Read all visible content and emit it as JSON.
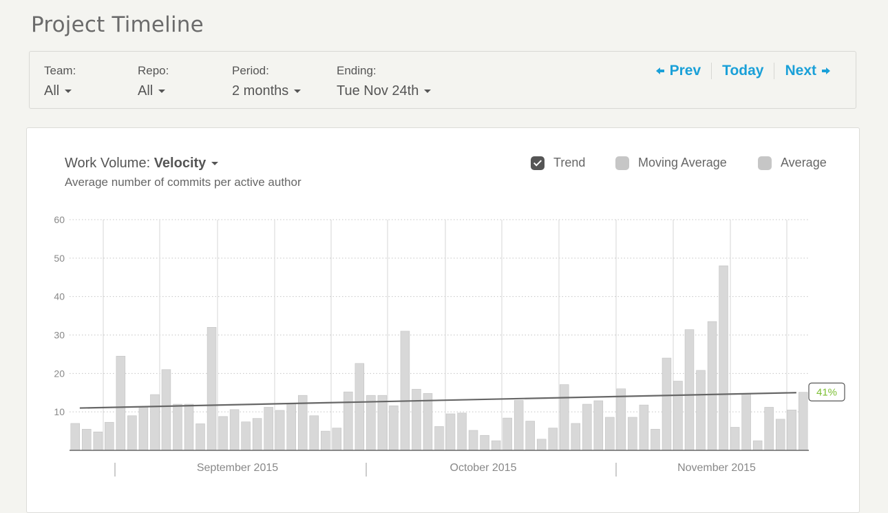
{
  "page_title": "Project Timeline",
  "filters": [
    {
      "label": "Team:",
      "value": "All"
    },
    {
      "label": "Repo:",
      "value": "All"
    },
    {
      "label": "Period:",
      "value": "2 months"
    },
    {
      "label": "Ending:",
      "value": "Tue Nov 24th"
    }
  ],
  "nav": {
    "prev": "Prev",
    "today": "Today",
    "next": "Next"
  },
  "chart_header": {
    "metric_label": "Work Volume:",
    "metric_value": "Velocity",
    "subtitle": "Average number of commits per active author"
  },
  "legend": [
    {
      "label": "Trend",
      "checked": true
    },
    {
      "label": "Moving Average",
      "checked": false
    },
    {
      "label": "Average",
      "checked": false
    }
  ],
  "colors": {
    "accent": "#1aa0d8",
    "bar": "#d8d8d8",
    "trend": "#666666",
    "trend_badge": "#7cbf33"
  },
  "chart_data": {
    "type": "bar",
    "ylim": [
      0,
      60
    ],
    "yticks": [
      10,
      20,
      30,
      40,
      50,
      60
    ],
    "grid": true,
    "x_labels": [
      "September 2015",
      "October 2015",
      "November 2015"
    ],
    "values": [
      7,
      5.5,
      4.8,
      7.3,
      24.5,
      9,
      11.3,
      14.5,
      21,
      12,
      12,
      6.9,
      32,
      8.8,
      10.6,
      7.4,
      8.3,
      11.2,
      10.4,
      12.3,
      14.3,
      9,
      5,
      5.8,
      15.2,
      22.6,
      14.3,
      14.3,
      11.6,
      31,
      15.9,
      14.8,
      6.2,
      9.5,
      9.7,
      5.2,
      3.9,
      2.5,
      8.4,
      13,
      7.6,
      2.9,
      5.8,
      17.1,
      7,
      12,
      12.9,
      8.6,
      16,
      8.6,
      11.8,
      5.5,
      24,
      18,
      31.4,
      20.8,
      33.5,
      48,
      6,
      14.8,
      2.5,
      11.2,
      8.1,
      10.5,
      15.1
    ],
    "trend": {
      "start": 11,
      "end": 15,
      "change_label": "41%"
    }
  }
}
